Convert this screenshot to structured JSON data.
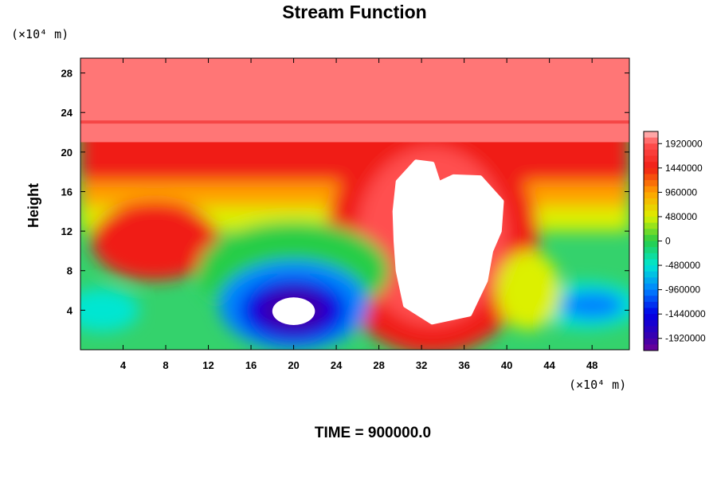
{
  "chart_data": {
    "type": "heatmap",
    "title": "Stream Function",
    "xlabel": "",
    "ylabel": "Height",
    "x_unit": "(×10⁴ m)",
    "y_unit": "(×10⁴ m)",
    "footer": "TIME = 900000.0",
    "xlim": [
      0,
      51.5
    ],
    "ylim": [
      0,
      29.5
    ],
    "x_ticks": [
      4,
      8,
      12,
      16,
      20,
      24,
      28,
      32,
      36,
      40,
      44,
      48
    ],
    "y_ticks": [
      4,
      8,
      12,
      16,
      20,
      24,
      28
    ],
    "colorbar": {
      "min": -2160000,
      "max": 2160000,
      "tick_labels": [
        "1920000",
        "1440000",
        "960000",
        "480000",
        "0",
        "-480000",
        "-960000",
        "-1440000",
        "-1920000"
      ],
      "tick_values": [
        1920000,
        1440000,
        960000,
        480000,
        0,
        -480000,
        -960000,
        -1440000,
        -1920000
      ]
    },
    "features": [
      {
        "kind": "max_plateau",
        "x": [
          0,
          51.5
        ],
        "y": [
          20,
          29.5
        ],
        "value": 2000000
      },
      {
        "kind": "low_vortex",
        "x": 20,
        "y": 4,
        "value": -2100000,
        "undefined_core": true
      },
      {
        "kind": "high_cell",
        "x": 33,
        "y": 11,
        "value": 2160000,
        "undefined_core": true
      },
      {
        "kind": "high_cell",
        "x": 7,
        "y": 10,
        "value": 1550000
      },
      {
        "kind": "low_cell",
        "x": 48,
        "y": 4.5,
        "value": -1000000
      },
      {
        "kind": "low_cell",
        "x": 2,
        "y": 4,
        "value": -800000
      }
    ]
  }
}
